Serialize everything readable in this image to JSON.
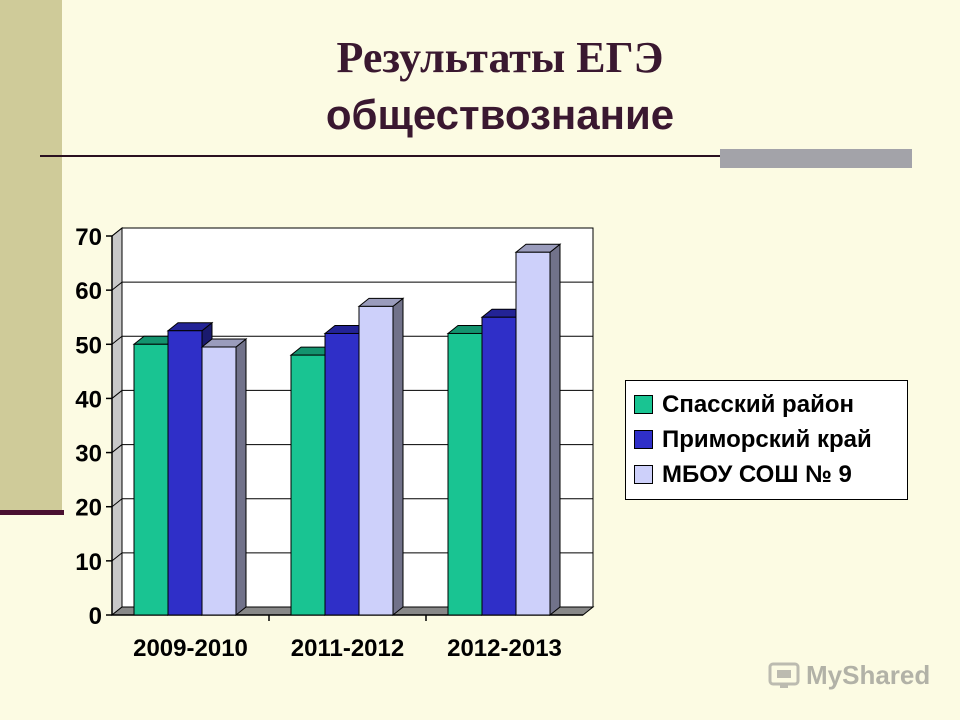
{
  "slide": {
    "title_line1": "Результаты ЕГЭ",
    "title_line2": "обществознание"
  },
  "colors": {
    "background": "#fcfbe3",
    "band": "#cfcb99",
    "series": [
      "#19c492",
      "#2f2fc8",
      "#cdd0fa"
    ]
  },
  "chart_data": {
    "type": "bar",
    "categories": [
      "2009-2010",
      "2011-2012",
      "2012-2013"
    ],
    "series": [
      {
        "name": "Спасский район",
        "values": [
          50,
          48,
          52
        ]
      },
      {
        "name": "Приморский край",
        "values": [
          52.5,
          52,
          55
        ]
      },
      {
        "name": "МБОУ СОШ № 9",
        "values": [
          49.5,
          57,
          67
        ]
      }
    ],
    "ylim": [
      0,
      70
    ],
    "yticks": [
      "0",
      "10",
      "20",
      "30",
      "40",
      "50",
      "60",
      "70"
    ],
    "grid": true,
    "legend_position": "right"
  },
  "legend": {
    "items": [
      {
        "label": "Спасский район"
      },
      {
        "label": "Приморский край"
      },
      {
        "label": "МБОУ СОШ № 9"
      }
    ]
  },
  "watermark": {
    "text": "MyShared"
  }
}
